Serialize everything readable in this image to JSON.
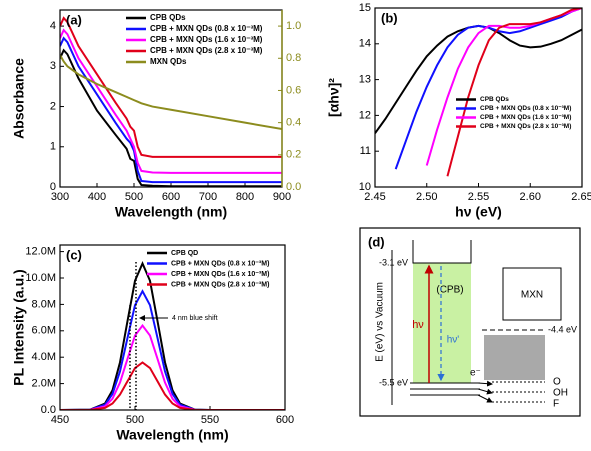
{
  "chart_data": [
    {
      "type": "line",
      "panel_label": "(a)",
      "xlabel": "Wavelength (nm)",
      "ylabel": "Absorbance",
      "x": [
        300,
        310,
        320,
        350,
        400,
        450,
        480,
        490,
        500,
        510,
        520,
        550,
        600,
        700,
        800,
        900
      ],
      "xlim": [
        300,
        900
      ],
      "xticks": [
        300,
        400,
        500,
        600,
        700,
        800,
        900
      ],
      "ylim": [
        0,
        4.4
      ],
      "yticks": [
        0,
        1,
        2,
        3,
        4
      ],
      "y2lim": [
        0,
        1.1
      ],
      "y2ticks": [
        {
          "value": 0,
          "label": "0.0"
        },
        0.2,
        0.4,
        0.6,
        0.8,
        {
          "value": 1,
          "label": "1.0"
        }
      ],
      "y2color": "#8c8c1e",
      "legend": "upper right",
      "series": [
        {
          "name": "CPB QDs",
          "color": "#000000",
          "values": [
            3.2,
            3.4,
            3.3,
            2.7,
            1.9,
            1.3,
            0.95,
            0.7,
            0.65,
            0.2,
            0.05,
            0.03,
            0.02,
            0.02,
            0.02,
            0.02
          ]
        },
        {
          "name": "CPB + MXN QDs (0.8 x 10⁻³M)",
          "color": "#1010ff",
          "values": [
            3.5,
            3.7,
            3.6,
            3.0,
            2.3,
            1.6,
            1.2,
            1.1,
            0.9,
            0.4,
            0.15,
            0.12,
            0.12,
            0.12,
            0.12,
            0.12
          ]
        },
        {
          "name": "CPB + MXN QDs (1.6 x 10⁻³M)",
          "color": "#ff00ff",
          "values": [
            3.7,
            3.9,
            3.8,
            3.2,
            2.5,
            1.8,
            1.4,
            1.2,
            1.0,
            0.6,
            0.4,
            0.36,
            0.35,
            0.35,
            0.35,
            0.35
          ]
        },
        {
          "name": "CPB + MXN QDs (2.8 x 10⁻³M)",
          "color": "#e0001a",
          "values": [
            4.0,
            4.2,
            4.1,
            3.5,
            2.8,
            2.1,
            1.7,
            1.5,
            1.4,
            1.0,
            0.8,
            0.75,
            0.75,
            0.75,
            0.75,
            0.75
          ]
        },
        {
          "name": "MXN QDs",
          "color": "#8c8c1e",
          "axis": "y2",
          "values": [
            0.82,
            0.78,
            0.75,
            0.7,
            0.64,
            0.59,
            0.56,
            0.55,
            0.54,
            0.53,
            0.52,
            0.5,
            0.48,
            0.44,
            0.4,
            0.36
          ]
        }
      ]
    },
    {
      "type": "line",
      "panel_label": "(b)",
      "xlabel": "hν (eV)",
      "ylabel": "[αhν]²",
      "x": [
        2.45,
        2.46,
        2.47,
        2.48,
        2.49,
        2.5,
        2.51,
        2.52,
        2.53,
        2.54,
        2.55,
        2.56,
        2.57,
        2.58,
        2.59,
        2.6,
        2.61,
        2.62,
        2.63,
        2.64,
        2.65
      ],
      "xlim": [
        2.45,
        2.65
      ],
      "xticks": [
        2.45,
        {
          "value": 2.5,
          "label": "2.50"
        },
        2.55,
        {
          "value": 2.6,
          "label": "2.60"
        },
        2.65
      ],
      "ylim": [
        10,
        15
      ],
      "yticks": [
        10,
        11,
        12,
        13,
        14,
        15
      ],
      "legend": "center right",
      "series": [
        {
          "name": "CPB QDs",
          "color": "#000000",
          "values": [
            11.5,
            11.9,
            12.35,
            12.8,
            13.25,
            13.65,
            13.95,
            14.2,
            14.35,
            14.45,
            14.5,
            14.45,
            14.3,
            14.1,
            13.95,
            13.9,
            13.92,
            14.0,
            14.1,
            14.25,
            14.4
          ]
        },
        {
          "name": "CPB + MXN QDs (0.8 x 10⁻³M)",
          "color": "#1010ff",
          "values": [
            null,
            null,
            10.5,
            11.3,
            12.1,
            12.8,
            13.4,
            13.9,
            14.25,
            14.45,
            14.5,
            14.45,
            14.35,
            14.3,
            14.35,
            14.45,
            14.55,
            14.65,
            14.75,
            14.9,
            15.0
          ]
        },
        {
          "name": "CPB + MXN QDs (1.6 x 10⁻³M)",
          "color": "#ff00ff",
          "values": [
            null,
            null,
            null,
            null,
            null,
            10.6,
            11.6,
            12.5,
            13.3,
            13.9,
            14.3,
            14.5,
            14.5,
            14.45,
            14.45,
            14.5,
            14.6,
            14.7,
            14.8,
            14.9,
            15.0
          ]
        },
        {
          "name": "CPB + MXN QDs (2.8 x 10⁻³M)",
          "color": "#e0001a",
          "values": [
            null,
            null,
            null,
            null,
            null,
            null,
            null,
            10.3,
            11.4,
            12.5,
            13.4,
            14.1,
            14.45,
            14.55,
            14.55,
            14.55,
            14.6,
            14.7,
            14.8,
            14.95,
            15.0
          ]
        }
      ]
    },
    {
      "type": "line",
      "panel_label": "(c)",
      "xlabel": "Wavelength (nm)",
      "ylabel": "PL Intensity (a.u.)",
      "annotation": "4 nm blue shift",
      "x": [
        450,
        470,
        480,
        485,
        490,
        495,
        500,
        505,
        510,
        515,
        520,
        525,
        530,
        540,
        550,
        575,
        600
      ],
      "xlim": [
        450,
        600
      ],
      "xticks": [
        450,
        500,
        550,
        600
      ],
      "ylim": [
        0,
        12500000
      ],
      "yticks": [
        {
          "value": 0,
          "label": "0.0"
        },
        {
          "value": 2000000,
          "label": "2.0M"
        },
        {
          "value": 4000000,
          "label": "4.0M"
        },
        {
          "value": 6000000,
          "label": "6.0M"
        },
        {
          "value": 8000000,
          "label": "8.0M"
        },
        {
          "value": 10000000,
          "label": "10.0M"
        },
        {
          "value": 12000000,
          "label": "12.0M"
        }
      ],
      "legend": "upper right",
      "series": [
        {
          "name": "CPB QD",
          "color": "#000000",
          "values": [
            0,
            24000,
            490000,
            1500000,
            3610000,
            6740000,
            9790000,
            11100000,
            9790000,
            6740000,
            3610000,
            1500000,
            490000,
            24000,
            0,
            0,
            0
          ]
        },
        {
          "name": "CPB + MXN QDs (0.8 x 10⁻³M)",
          "color": "#1010ff",
          "values": [
            0,
            20000,
            400000,
            1220000,
            2930000,
            5460000,
            7940000,
            9000000,
            7940000,
            5460000,
            2930000,
            1220000,
            400000,
            20000,
            0,
            0,
            0
          ]
        },
        {
          "name": "CPB + MXN QDs (1.6 x 10⁻³M)",
          "color": "#ff00ff",
          "values": [
            0,
            14000,
            280000,
            860000,
            2080000,
            3880000,
            5640000,
            6400000,
            5640000,
            3880000,
            2080000,
            860000,
            280000,
            14000,
            0,
            0,
            0
          ]
        },
        {
          "name": "CPB + MXN QDs (2.8 x 10⁻³M)",
          "color": "#e0001a",
          "values": [
            0,
            8000,
            160000,
            490000,
            1170000,
            2180000,
            3180000,
            3600000,
            3180000,
            2180000,
            1170000,
            490000,
            160000,
            8000,
            0,
            0,
            0
          ]
        }
      ]
    }
  ],
  "diagram": {
    "label": "(d)",
    "ylabel": "E (eV) vs Vacuum",
    "cb": "-3.1 eV",
    "vb": "-5.5 eV",
    "material": "(CPB)",
    "hv": "hν",
    "hv2": "hν'",
    "mxn": "MXN",
    "mxn_level": "-4.4 eV",
    "electron": "e⁻",
    "terminations": [
      "O",
      "OH",
      "F"
    ]
  }
}
